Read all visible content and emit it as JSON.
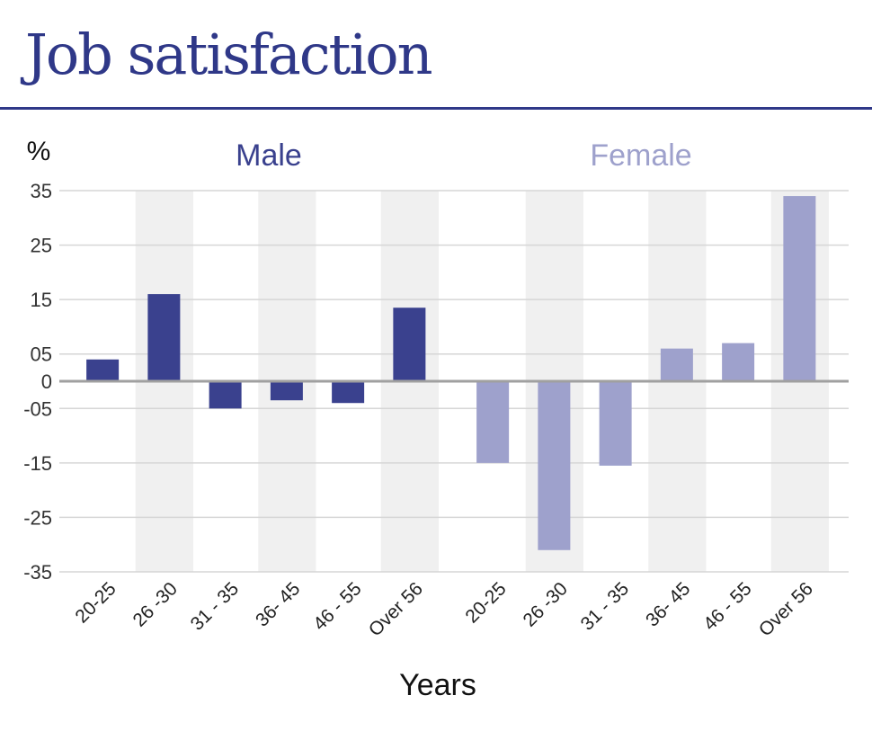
{
  "chart_data": {
    "type": "bar",
    "title": "Job satisfaction",
    "ylabel": "%",
    "xlabel": "Years",
    "ylim": [
      -35,
      35
    ],
    "ytick_values": [
      35,
      25,
      15,
      5,
      0,
      -5,
      -15,
      -25,
      -35
    ],
    "ytick_labels": [
      "35",
      "25",
      "15",
      "05",
      "0",
      "-05",
      "-15",
      "-25",
      "-35"
    ],
    "grid": true,
    "groups": [
      {
        "name": "Male",
        "color": "#3a418e",
        "categories": [
          "20-25",
          "26 -30",
          "31 - 35",
          "36- 45",
          "46 - 55",
          "Over 56"
        ],
        "values": [
          4,
          16,
          -5,
          -3.5,
          -4,
          13.5
        ]
      },
      {
        "name": "Female",
        "color": "#9ea1cc",
        "categories": [
          "20-25",
          "26 -30",
          "31 - 35",
          "36- 45",
          "46 - 55",
          "Over 56"
        ],
        "values": [
          -15,
          -31,
          -15.5,
          6,
          7,
          34
        ]
      }
    ]
  },
  "colors": {
    "title": "#2f3888",
    "grid": "#d6d6d6",
    "zero_line": "#a0a0a0",
    "band": "#f0f0f0"
  }
}
